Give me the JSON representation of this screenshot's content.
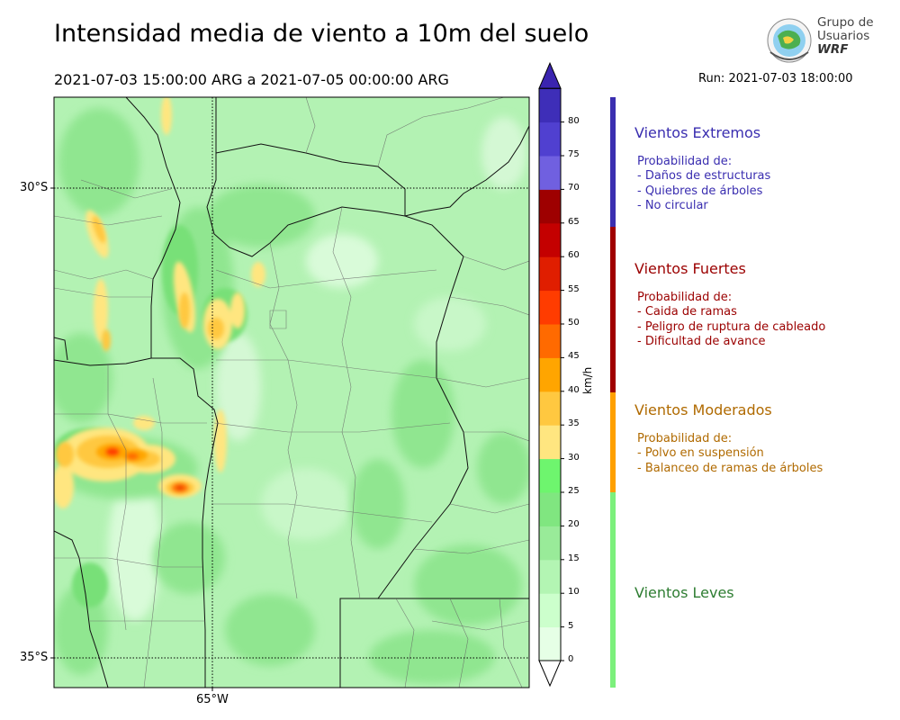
{
  "header": {
    "title": "Intensidad media de viento a 10m del suelo",
    "period": "2021-07-03 15:00:00 ARG  a  2021-07-05 00:00:00 ARG",
    "run": "Run: 2021-07-03 18:00:00"
  },
  "logo": {
    "line1": "Grupo de",
    "line2": "Usuarios",
    "line3": "WRF"
  },
  "map": {
    "lat_labels": [
      "30°S",
      "35°S"
    ],
    "lon_labels": [
      "65°W"
    ]
  },
  "colorbar": {
    "unit": "km/h",
    "ticks": [
      "0",
      "5",
      "10",
      "15",
      "20",
      "25",
      "30",
      "35",
      "40",
      "45",
      "50",
      "55",
      "60",
      "65",
      "70",
      "75",
      "80"
    ],
    "colors": [
      "#e6ffe6",
      "#ccffcc",
      "#b3f5b3",
      "#99eb99",
      "#80e680",
      "#6ef56e",
      "#ffe680",
      "#ffc840",
      "#ffa500",
      "#ff6a00",
      "#ff3c00",
      "#e01e00",
      "#c40000",
      "#9e0000",
      "#7060e0",
      "#5040d0",
      "#3e2eb8"
    ],
    "extend_bottom_color": "#ffffff",
    "extend_top_color": "#3a24b0"
  },
  "categories": [
    {
      "title": "Vientos Extremos",
      "color": "#3a2eb0",
      "lines": [
        "Probabilidad de:",
        "- Daños de estructuras",
        "- Quiebres de árboles",
        "- No circular"
      ]
    },
    {
      "title": "Vientos Fuertes",
      "color": "#9b0000",
      "lines": [
        "Probabilidad de:",
        "- Caida de ramas",
        "- Peligro de ruptura de cableado",
        "- Dificultad de avance"
      ]
    },
    {
      "title": "Vientos Moderados",
      "color": "#b06a00",
      "lines": [
        "Probabilidad de:",
        "- Polvo en suspensión",
        "- Balanceo de ramas de árboles"
      ]
    },
    {
      "title": "Vientos Leves",
      "color": "#2e7d32",
      "lines": []
    }
  ],
  "category_bar_colors": [
    "#3a2eb0",
    "#a00000",
    "#ffa000",
    "#7cf07c"
  ]
}
